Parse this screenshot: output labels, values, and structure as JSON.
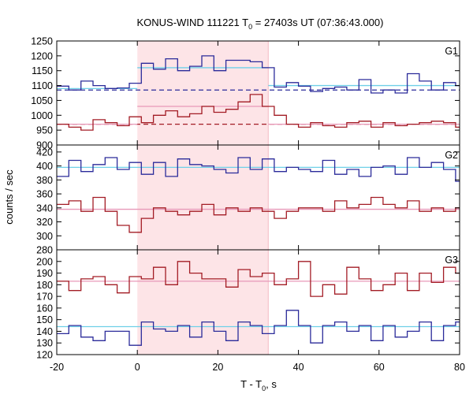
{
  "title_prefix": "KONUS-WIND 111221 T",
  "title_sub": "0",
  "title_suffix": " = 27403s UT (07:36:43.000)",
  "xlabel_prefix": "T - T",
  "xlabel_sub": "0",
  "xlabel_suffix": ", s",
  "ylabel": "counts / sec",
  "colors": {
    "blue_series": "#2b2b9a",
    "red_series": "#a31c25",
    "blue_fit": "#6fd0e8",
    "red_fit": "#e898b8",
    "highlight": "#fde4e7",
    "frame": "#000000"
  },
  "chart_data": [
    {
      "type": "line",
      "panel_label": "G1",
      "xlim": [
        -20,
        80
      ],
      "ylim": [
        900,
        1250
      ],
      "x_ticks": [
        "-20",
        "0",
        "20",
        "40",
        "60",
        "80"
      ],
      "y_ticks": [
        "900",
        "950",
        "1000",
        "1050",
        "1100",
        "1150",
        "1200",
        "1250"
      ],
      "highlight_interval": [
        0,
        32.5
      ],
      "bin_edges": [
        -20,
        -17,
        -14,
        -11,
        -8,
        -5,
        -2,
        1,
        4,
        7,
        10,
        13,
        16,
        19,
        22,
        25,
        28,
        31,
        34,
        37,
        40,
        43,
        46,
        49,
        52,
        55,
        58,
        61,
        64,
        67,
        70,
        73,
        76,
        79,
        80
      ],
      "series": [
        {
          "color": "blue",
          "values": [
            1098,
            1085,
            1115,
            1100,
            1090,
            1092,
            1108,
            1175,
            1155,
            1190,
            1150,
            1165,
            1200,
            1150,
            1185,
            1185,
            1180,
            1160,
            1095,
            1110,
            1098,
            1080,
            1090,
            1095,
            1085,
            1120,
            1075,
            1085,
            1075,
            1140,
            1115,
            1085,
            1110,
            1100
          ],
          "fit_segments": [
            [
              -20,
              0,
              1090
            ],
            [
              0,
              32.5,
              1160
            ],
            [
              32.5,
              80,
              1100
            ]
          ],
          "background": [
            [
              -20,
              80,
              1085
            ]
          ]
        },
        {
          "color": "red",
          "values": [
            970,
            960,
            950,
            985,
            975,
            965,
            995,
            975,
            1000,
            1015,
            995,
            1005,
            1030,
            1010,
            1020,
            1045,
            1070,
            1030,
            1000,
            970,
            960,
            975,
            965,
            960,
            975,
            980,
            960,
            975,
            965,
            970,
            975,
            980,
            975,
            960
          ],
          "fit_segments": [
            [
              -20,
              0,
              970
            ],
            [
              0,
              32.5,
              1030
            ],
            [
              32.5,
              80,
              970
            ]
          ],
          "background": [
            [
              -20,
              80,
              970
            ]
          ]
        }
      ]
    },
    {
      "type": "line",
      "panel_label": "G2",
      "xlim": [
        -20,
        80
      ],
      "ylim": [
        280,
        430
      ],
      "y_ticks": [
        "280",
        "300",
        "320",
        "340",
        "360",
        "380",
        "400",
        "420"
      ],
      "highlight_interval": [
        0,
        32.5
      ],
      "bin_edges": [
        -20,
        -17,
        -14,
        -11,
        -8,
        -5,
        -2,
        1,
        4,
        7,
        10,
        13,
        16,
        19,
        22,
        25,
        28,
        31,
        34,
        37,
        40,
        43,
        46,
        49,
        52,
        55,
        58,
        61,
        64,
        67,
        70,
        73,
        76,
        79,
        80
      ],
      "series": [
        {
          "color": "blue",
          "values": [
            385,
            408,
            392,
            402,
            412,
            395,
            405,
            388,
            405,
            385,
            410,
            402,
            400,
            395,
            390,
            412,
            395,
            410,
            392,
            398,
            395,
            392,
            408,
            388,
            395,
            385,
            398,
            400,
            388,
            412,
            398,
            405,
            395,
            378
          ],
          "fit_segments": [
            [
              -20,
              80,
              398
            ]
          ]
        },
        {
          "color": "red",
          "values": [
            345,
            350,
            335,
            355,
            335,
            315,
            305,
            325,
            340,
            335,
            330,
            335,
            345,
            330,
            340,
            335,
            340,
            335,
            325,
            335,
            340,
            340,
            335,
            350,
            340,
            345,
            355,
            345,
            340,
            350,
            335,
            340,
            335,
            340
          ],
          "fit_segments": [
            [
              -20,
              80,
              338
            ]
          ]
        }
      ]
    },
    {
      "type": "line",
      "panel_label": "G3",
      "xlim": [
        -20,
        80
      ],
      "ylim": [
        120,
        210
      ],
      "y_ticks": [
        "120",
        "130",
        "140",
        "150",
        "160",
        "170",
        "180",
        "190",
        "200"
      ],
      "highlight_interval": [
        0,
        32.5
      ],
      "bin_edges": [
        -20,
        -17,
        -14,
        -11,
        -8,
        -5,
        -2,
        1,
        4,
        7,
        10,
        13,
        16,
        19,
        22,
        25,
        28,
        31,
        34,
        37,
        40,
        43,
        46,
        49,
        52,
        55,
        58,
        61,
        64,
        67,
        70,
        73,
        76,
        79,
        80
      ],
      "series": [
        {
          "color": "red",
          "values": [
            183,
            175,
            185,
            187,
            180,
            173,
            187,
            185,
            195,
            180,
            200,
            190,
            185,
            185,
            178,
            193,
            187,
            190,
            180,
            185,
            200,
            170,
            180,
            172,
            195,
            185,
            175,
            180,
            190,
            175,
            190,
            182,
            195,
            190
          ],
          "fit_segments": [
            [
              -20,
              80,
              183
            ]
          ]
        },
        {
          "color": "blue",
          "values": [
            138,
            145,
            135,
            132,
            140,
            140,
            128,
            148,
            142,
            140,
            145,
            135,
            148,
            140,
            132,
            148,
            145,
            138,
            145,
            158,
            145,
            130,
            145,
            148,
            140,
            145,
            132,
            145,
            135,
            140,
            148,
            132,
            145,
            148
          ],
          "fit_segments": [
            [
              -20,
              80,
              144
            ]
          ]
        }
      ]
    }
  ]
}
